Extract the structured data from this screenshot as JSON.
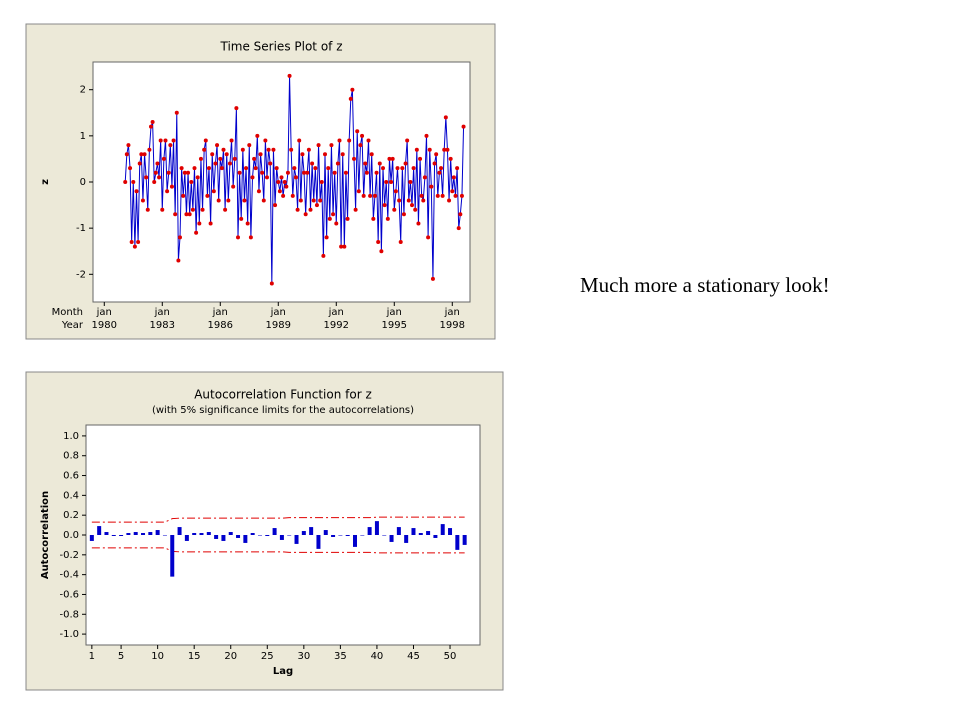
{
  "chart_data": [
    {
      "type": "line",
      "title": "Time Series Plot of z",
      "y_label": "z",
      "x_row_labels": [
        "Month",
        "Year"
      ],
      "xtick_month": "jan",
      "values": [
        0.0,
        0.6,
        0.8,
        0.3,
        -1.3,
        0.0,
        -1.4,
        -0.2,
        -1.3,
        0.4,
        0.6,
        -0.4,
        0.6,
        0.1,
        -0.6,
        0.7,
        1.2,
        1.3,
        0.0,
        0.2,
        0.4,
        0.1,
        0.9,
        -0.6,
        0.5,
        0.9,
        -0.2,
        0.2,
        0.8,
        -0.1,
        0.9,
        -0.7,
        1.5,
        -1.7,
        -1.2,
        0.3,
        -0.3,
        0.2,
        -0.7,
        0.2,
        -0.7,
        0.0,
        -0.6,
        0.3,
        -1.1,
        0.1,
        -0.9,
        0.5,
        -0.6,
        0.7,
        0.9,
        -0.3,
        0.3,
        -0.9,
        0.6,
        -0.2,
        0.4,
        0.8,
        -0.4,
        0.5,
        0.3,
        0.7,
        -0.6,
        0.6,
        -0.4,
        0.4,
        0.9,
        -0.1,
        0.5,
        1.6,
        -1.2,
        0.2,
        -0.8,
        0.7,
        -0.4,
        0.3,
        -0.9,
        0.8,
        -1.2,
        0.1,
        0.5,
        0.3,
        1.0,
        -0.2,
        0.6,
        0.2,
        -0.4,
        0.9,
        0.1,
        0.7,
        0.4,
        -2.2,
        0.7,
        -0.5,
        0.3,
        0.0,
        -0.2,
        0.1,
        -0.3,
        0.0,
        -0.1,
        0.2,
        2.3,
        0.7,
        -0.3,
        0.3,
        0.1,
        -0.6,
        0.9,
        -0.4,
        0.6,
        0.2,
        -0.7,
        0.2,
        0.7,
        -0.6,
        0.4,
        -0.4,
        0.3,
        -0.5,
        0.8,
        -0.4,
        0.0,
        -1.6,
        0.6,
        -1.2,
        0.3,
        -0.8,
        0.8,
        -0.7,
        0.2,
        -0.9,
        0.4,
        0.9,
        -1.4,
        0.6,
        -1.4,
        0.2,
        -0.8,
        0.9,
        1.8,
        2.0,
        0.5,
        -0.6,
        1.1,
        -0.2,
        0.8,
        1.0,
        -0.3,
        0.4,
        0.2,
        0.9,
        -0.3,
        0.6,
        -0.8,
        -0.3,
        0.2,
        -1.3,
        0.4,
        -1.5,
        0.3,
        -0.5,
        0.0,
        -0.8,
        0.5,
        0.0,
        0.5,
        -0.6,
        -0.2,
        0.3,
        -0.4,
        -1.3,
        0.3,
        -0.7,
        0.4,
        0.9,
        -0.4,
        0.0,
        -0.5,
        0.3,
        -0.6,
        0.7,
        -0.9,
        0.5,
        -0.3,
        -0.4,
        0.1,
        1.0,
        -1.2,
        0.7,
        -0.1,
        -2.1,
        0.4,
        0.6,
        -0.3,
        0.2,
        0.3,
        -0.3,
        0.7,
        1.4,
        0.7,
        -0.4,
        0.5,
        -0.2,
        0.1,
        -0.3,
        0.3,
        -1.0,
        -0.7,
        -0.3,
        1.2
      ],
      "line_color": "#0000cc",
      "marker_color": "#e00000",
      "xlim": [
        -20,
        214
      ],
      "xticks": [
        {
          "value": -13,
          "label": "1980"
        },
        {
          "value": 23,
          "label": "1983"
        },
        {
          "value": 59,
          "label": "1986"
        },
        {
          "value": 95,
          "label": "1989"
        },
        {
          "value": 131,
          "label": "1992"
        },
        {
          "value": 167,
          "label": "1995"
        },
        {
          "value": 203,
          "label": "1998"
        }
      ],
      "ylim": [
        -2.6,
        2.6
      ],
      "yticks": [
        -2,
        -1,
        0,
        1,
        2
      ]
    },
    {
      "type": "acf",
      "title": "Autocorrelation Function for z",
      "subtitle": "(with 5% significance limits for the autocorrelations)",
      "x_label": "Lag",
      "y_label": "Autocorrelation",
      "x": [
        1,
        2,
        3,
        4,
        5,
        6,
        7,
        8,
        9,
        10,
        11,
        12,
        13,
        14,
        15,
        16,
        17,
        18,
        19,
        20,
        21,
        22,
        23,
        24,
        25,
        26,
        27,
        28,
        29,
        30,
        31,
        32,
        33,
        34,
        35,
        36,
        37,
        38,
        39,
        40,
        41,
        42,
        43,
        44,
        45,
        46,
        47,
        48,
        49,
        50,
        51,
        52
      ],
      "values": [
        -0.06,
        0.09,
        0.03,
        -0.01,
        -0.01,
        0.02,
        0.03,
        0.02,
        0.03,
        0.05,
        0.0,
        -0.42,
        0.08,
        -0.06,
        0.02,
        0.02,
        0.03,
        -0.04,
        -0.06,
        0.03,
        -0.03,
        -0.08,
        0.02,
        0.0,
        -0.01,
        0.07,
        -0.05,
        0.0,
        -0.09,
        0.04,
        0.08,
        -0.14,
        0.05,
        -0.02,
        0.0,
        -0.01,
        -0.12,
        0.0,
        0.08,
        0.14,
        0.0,
        -0.07,
        0.08,
        -0.08,
        0.07,
        0.02,
        0.04,
        -0.03,
        0.11,
        0.07,
        -0.15,
        -0.1
      ],
      "upper_limits": [
        0.13,
        0.13,
        0.13,
        0.13,
        0.13,
        0.13,
        0.13,
        0.13,
        0.13,
        0.13,
        0.13,
        0.165,
        0.17,
        0.17,
        0.17,
        0.17,
        0.17,
        0.17,
        0.17,
        0.17,
        0.17,
        0.17,
        0.17,
        0.17,
        0.17,
        0.17,
        0.17,
        0.175,
        0.175,
        0.175,
        0.175,
        0.175,
        0.175,
        0.175,
        0.175,
        0.175,
        0.175,
        0.175,
        0.175,
        0.18,
        0.18,
        0.18,
        0.18,
        0.18,
        0.18,
        0.18,
        0.18,
        0.18,
        0.18,
        0.18,
        0.18,
        0.18
      ],
      "lower_limits": [
        -0.13,
        -0.13,
        -0.13,
        -0.13,
        -0.13,
        -0.13,
        -0.13,
        -0.13,
        -0.13,
        -0.13,
        -0.13,
        -0.165,
        -0.17,
        -0.17,
        -0.17,
        -0.17,
        -0.17,
        -0.17,
        -0.17,
        -0.17,
        -0.17,
        -0.17,
        -0.17,
        -0.17,
        -0.17,
        -0.17,
        -0.17,
        -0.175,
        -0.175,
        -0.175,
        -0.175,
        -0.175,
        -0.175,
        -0.175,
        -0.175,
        -0.175,
        -0.175,
        -0.175,
        -0.175,
        -0.18,
        -0.18,
        -0.18,
        -0.18,
        -0.18,
        -0.18,
        -0.18,
        -0.18,
        -0.18,
        -0.18,
        -0.18,
        -0.18,
        -0.18
      ],
      "bar_color": "#0000cc",
      "limit_color": "#e00000",
      "xlim": [
        0.2,
        54.1
      ],
      "xticks": [
        1,
        5,
        10,
        15,
        20,
        25,
        30,
        35,
        40,
        45,
        50
      ],
      "ylim": [
        -1.11,
        1.11
      ],
      "yticks": [
        {
          "value": -1,
          "label": "-1.0"
        },
        {
          "value": -0.8,
          "label": "-0.8"
        },
        {
          "value": -0.6,
          "label": "-0.6"
        },
        {
          "value": -0.4,
          "label": "-0.4"
        },
        {
          "value": -0.2,
          "label": "-0.2"
        },
        {
          "value": 0,
          "label": "0.0"
        },
        {
          "value": 0.2,
          "label": "0.2"
        },
        {
          "value": 0.4,
          "label": "0.4"
        },
        {
          "value": 0.6,
          "label": "0.6"
        },
        {
          "value": 0.8,
          "label": "0.8"
        },
        {
          "value": 1,
          "label": "1.0"
        }
      ]
    }
  ],
  "text": "Much more a stationary look!"
}
